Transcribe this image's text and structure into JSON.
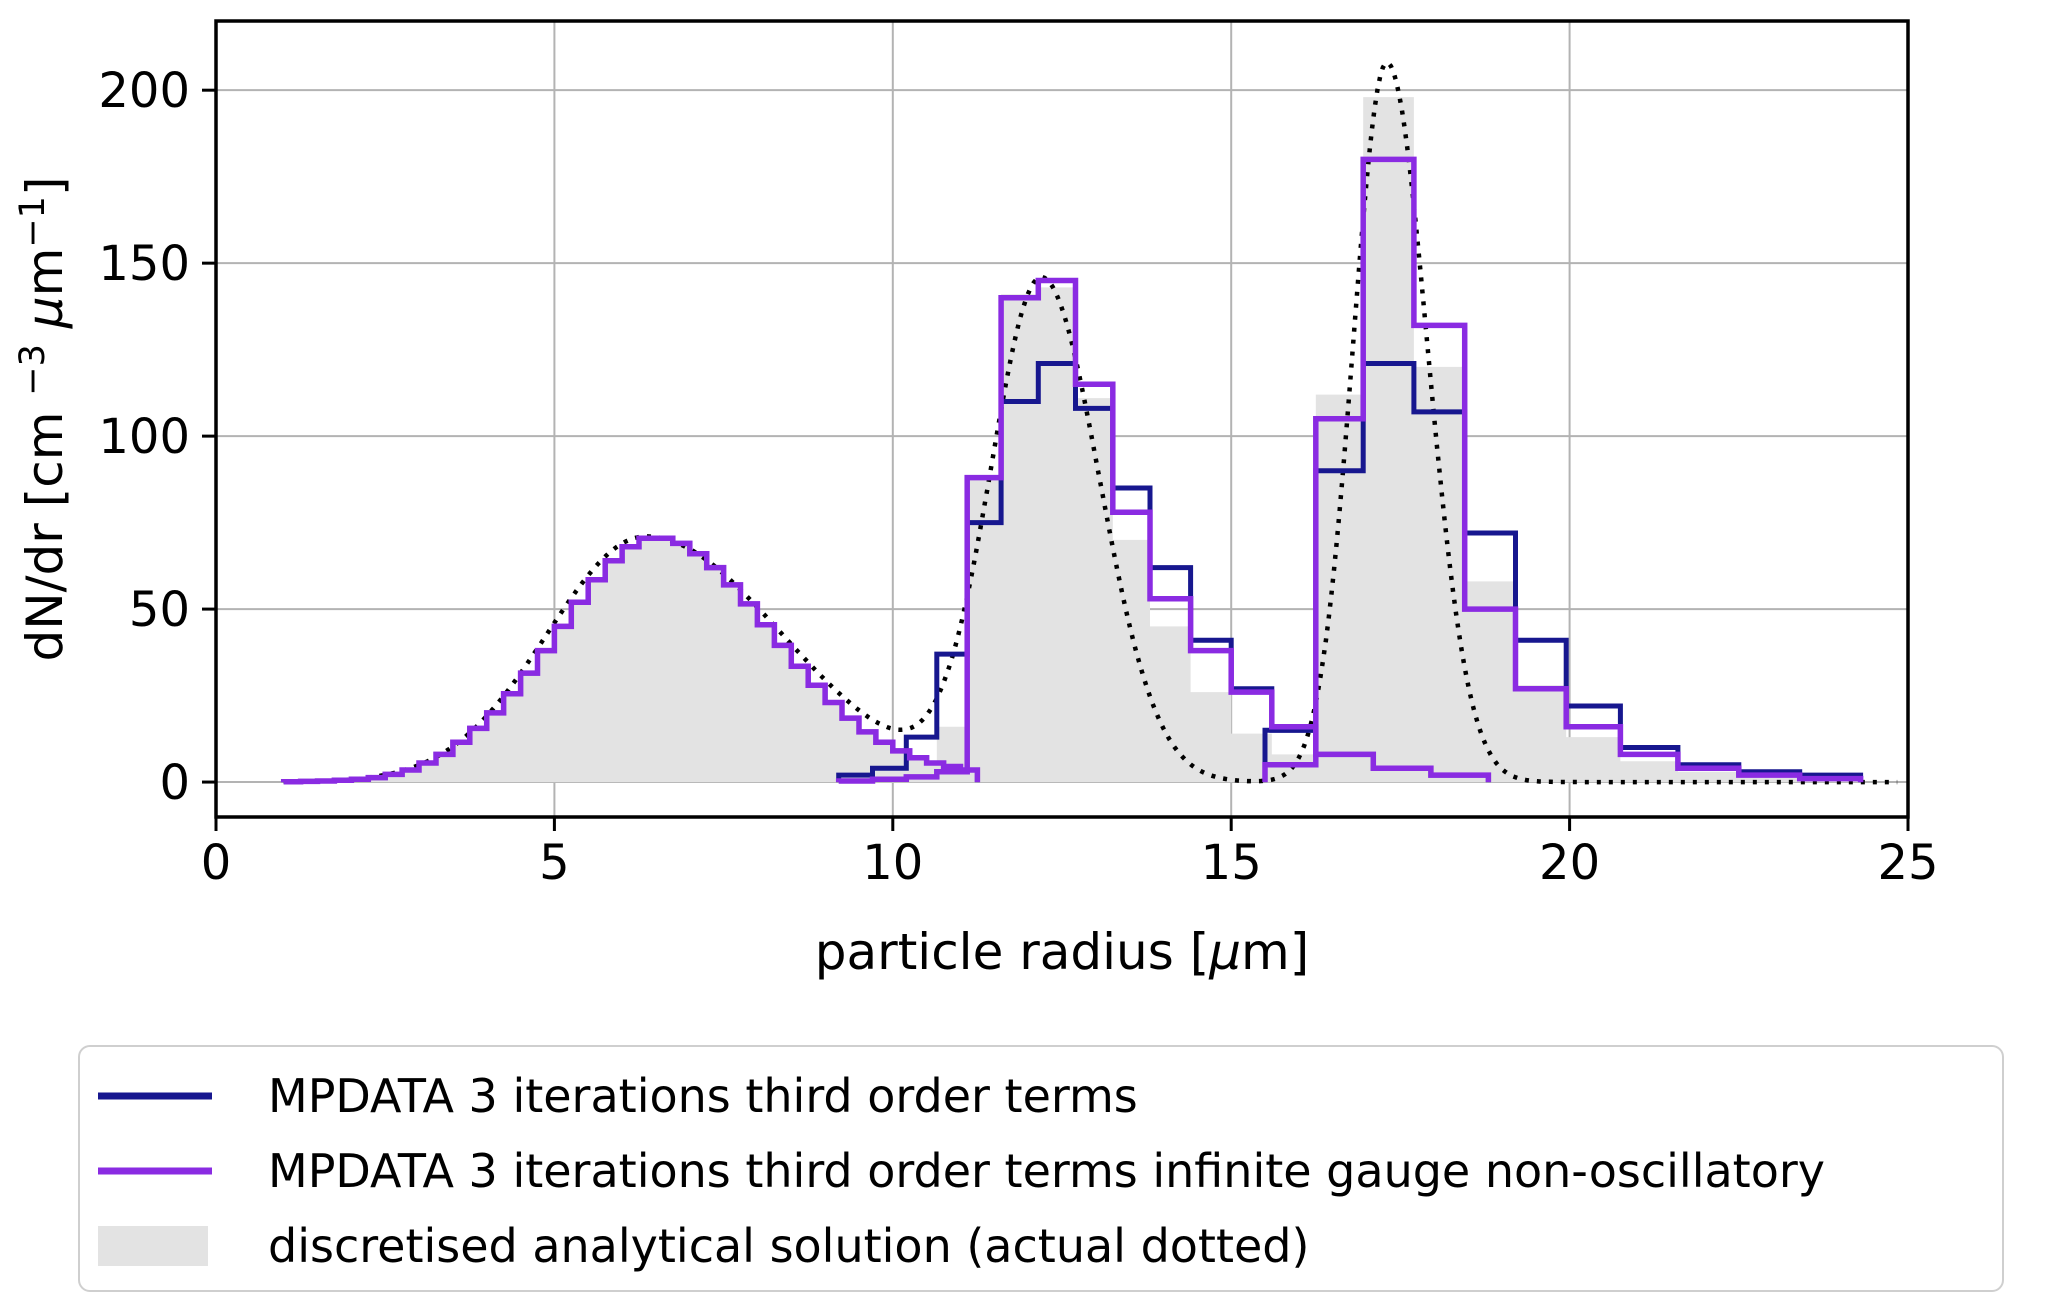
{
  "figure": {
    "kind": "matplotlib-style particle size spectrum plot",
    "background": "#ffffff"
  },
  "colors": {
    "navy": "#17178f",
    "purple": "#8a2be2",
    "gray_fill": "#e3e3e3",
    "dotted": "#000000",
    "grid": "#b3b3b3",
    "frame": "#000000",
    "text": "#000000",
    "legend_border": "#cfcfcf"
  },
  "axes": {
    "xlabel_parts": [
      {
        "t": "particle radius ["
      },
      {
        "t": "μ",
        "italic": true
      },
      {
        "t": "m]"
      }
    ],
    "ylabel_parts": [
      {
        "t": "dN/dr [cm "
      },
      {
        "t": "−3",
        "sup": true
      },
      {
        "t": " "
      },
      {
        "t": "μ",
        "italic": true
      },
      {
        "t": "m"
      },
      {
        "t": "−1",
        "sup": true
      },
      {
        "t": "]"
      }
    ],
    "x_ticks": [
      0,
      5,
      10,
      15,
      20,
      25
    ],
    "y_ticks": [
      0,
      50,
      100,
      150,
      200
    ],
    "xlim": [
      0,
      25
    ],
    "ylim": [
      -10.1,
      220
    ],
    "grid": true
  },
  "legend": {
    "items": [
      {
        "label": "MPDATA 3 iterations third order terms",
        "key": "line",
        "color": "navy"
      },
      {
        "label": "MPDATA 3 iterations third order terms infinite gauge non-oscillatory",
        "key": "line",
        "color": "purple"
      },
      {
        "label": "discretised analytical solution (actual dotted)",
        "key": "patch",
        "color": "gray_fill"
      }
    ]
  },
  "chart_data": {
    "type": "bar",
    "subtype": "step-histogram spectra, three time snapshots overlaid",
    "xlabel": "particle radius [μm]",
    "ylabel": "dN/dr [cm−3 μm−1]",
    "xlim": [
      0,
      25
    ],
    "ylim": [
      -10.1,
      220
    ],
    "dotted_range": [
      1.0,
      24.85
    ],
    "dotted_gaussians": [
      {
        "amp": 71,
        "mu": 6.35,
        "sigma_left": 1.45,
        "sigma_right": 2.0
      },
      {
        "amp": 145,
        "mu": 12.2,
        "sigma_left": 0.75,
        "sigma_right": 0.85
      },
      {
        "amp": 208,
        "mu": 17.3,
        "sigma_left": 0.5,
        "sigma_right": 0.6
      }
    ],
    "snapshots": [
      {
        "name": "initial",
        "edges_start": 1.0,
        "edges_step": 0.25,
        "analytical": [
          0.1,
          0.2,
          0.3,
          0.5,
          0.8,
          1.3,
          2.2,
          3.5,
          5.5,
          8,
          11.5,
          15.5,
          20,
          25.5,
          31.5,
          38,
          45,
          52,
          58.5,
          64,
          68,
          70.5,
          70.5,
          69,
          66,
          62,
          57,
          51.5,
          45.5,
          39.5,
          33.5,
          28,
          23,
          18.5,
          14.5,
          11.5,
          9,
          7,
          5.5,
          4.5,
          3.5
        ],
        "navy": "same_as_analytical",
        "purple": "same_as_analytical"
      },
      {
        "name": "mid",
        "edges": [
          9.2,
          9.7,
          10.2,
          10.65,
          11.1,
          11.6,
          12.15,
          12.7,
          13.25,
          13.8,
          14.4,
          15.0,
          15.6,
          16.25,
          17.1,
          17.95,
          18.8
        ],
        "analytical": [
          1,
          2,
          4,
          16,
          88,
          141,
          143,
          111,
          70,
          45,
          26,
          14,
          8,
          4,
          2,
          1
        ],
        "navy": [
          2,
          4,
          13,
          37,
          75,
          110,
          121,
          108,
          85,
          62,
          41,
          27,
          15,
          8,
          4,
          2
        ],
        "purple": [
          0.3,
          0.8,
          1.5,
          3,
          88,
          140,
          145,
          115,
          78,
          53,
          38,
          26,
          16,
          8,
          4,
          2
        ]
      },
      {
        "name": "final",
        "edges": [
          15.5,
          16.25,
          16.95,
          17.7,
          18.45,
          19.2,
          19.95,
          20.75,
          21.6,
          22.5,
          23.4,
          24.3
        ],
        "analytical": [
          6,
          112,
          198,
          120,
          58,
          28,
          13,
          6,
          3,
          1.5,
          1
        ],
        "navy": [
          15,
          90,
          121,
          107,
          72,
          41,
          22,
          10,
          5,
          3,
          2
        ],
        "purple": [
          5,
          105,
          180,
          132,
          50,
          27,
          16,
          8,
          4,
          2,
          1
        ]
      }
    ]
  }
}
